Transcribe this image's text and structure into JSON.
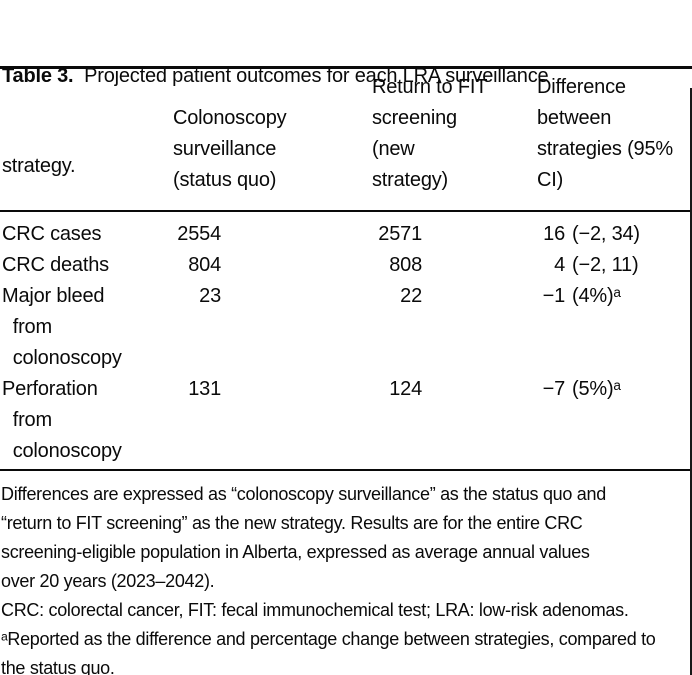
{
  "caption": {
    "label": "Table 3.",
    "line1_rest": "  Projected patient outcomes for each LRA surveillance",
    "line2": "strategy."
  },
  "header": {
    "colonoscopy": "Colonoscopy\nsurveillance\n(status quo)",
    "fit": "Return to FIT\nscreening\n(new\nstrategy)",
    "difference": "Difference\nbetween\nstrategies (95%\nCI)"
  },
  "table": {
    "rows": [
      {
        "label": "CRC cases",
        "colonoscopy": "2554",
        "fit": "2571",
        "diff_value": "16",
        "diff_detail": "(−2, 34)"
      },
      {
        "label": "CRC deaths",
        "colonoscopy": "804",
        "fit": "808",
        "diff_value": "4",
        "diff_detail": "(−2, 11)"
      },
      {
        "label": "Major bleed\n  from\n  colonoscopy",
        "colonoscopy": "23",
        "fit": "22",
        "diff_value": "−1",
        "diff_detail": "(4%)ᵃ"
      },
      {
        "label": "Perforation\n  from\n  colonoscopy",
        "colonoscopy": "131",
        "fit": "124",
        "diff_value": "−7",
        "diff_detail": "(5%)ᵃ"
      }
    ]
  },
  "footnotes": {
    "lines": [
      "Differences are expressed as “colonoscopy surveillance” as the status quo and",
      "“return to FIT screening” as the new strategy. Results are for the entire CRC",
      "screening-eligible population in Alberta, expressed as average annual values",
      "over 20 years (2023–2042).",
      "CRC: colorectal cancer, FIT: fecal immunochemical test; LRA: low-risk adenomas.",
      "ᵃReported as the difference and percentage change between strategies, compared to",
      "the status quo."
    ]
  },
  "colors": {
    "text": "#0a0a0a",
    "background": "#ffffff",
    "rule": "#0a0a0a"
  }
}
